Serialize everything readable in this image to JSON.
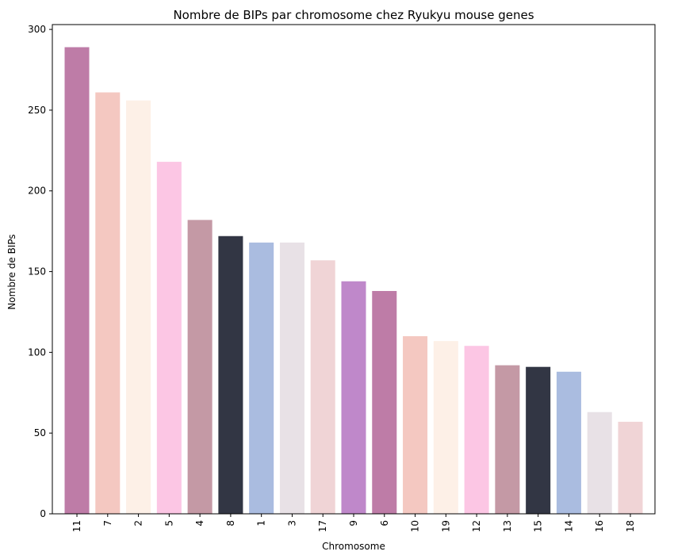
{
  "chart_data": {
    "type": "bar",
    "title": "Nombre de BIPs par chromosome chez Ryukyu mouse genes",
    "xlabel": "Chromosome",
    "ylabel": "Nombre de BIPs",
    "categories": [
      "11",
      "7",
      "2",
      "5",
      "4",
      "8",
      "1",
      "3",
      "17",
      "9",
      "6",
      "10",
      "19",
      "12",
      "13",
      "15",
      "14",
      "16",
      "18"
    ],
    "values": [
      289,
      261,
      256,
      218,
      182,
      172,
      168,
      168,
      157,
      144,
      138,
      110,
      107,
      104,
      92,
      91,
      88,
      63,
      57
    ],
    "colors": [
      "#be7ca7",
      "#f4c8c1",
      "#fdf0e7",
      "#fcc6e4",
      "#c499a5",
      "#323644",
      "#aabce0",
      "#e8e1e6",
      "#f0d4d6",
      "#bf88ca",
      "#be7ca7",
      "#f4c8c1",
      "#fdf0e7",
      "#fcc6e4",
      "#c499a5",
      "#323644",
      "#aabce0",
      "#e8e1e6",
      "#f0d4d6"
    ],
    "ylim": [
      0,
      303
    ],
    "yticks": [
      0,
      50,
      100,
      150,
      200,
      250,
      300
    ],
    "xtick_rotation": "vertical",
    "grid": false
  }
}
